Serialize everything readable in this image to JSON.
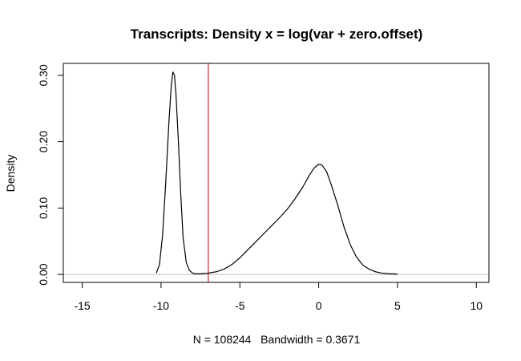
{
  "chart_data": {
    "type": "line",
    "title": "Transcripts: Density x = log(var + zero.offset)",
    "xlabel": "N = 108244   Bandwidth = 0.3671",
    "ylabel": "Density",
    "xlim": [
      -16.2,
      10.8
    ],
    "ylim": [
      -0.012,
      0.318
    ],
    "x_ticks": [
      -15,
      -10,
      -5,
      0,
      5,
      10
    ],
    "x_tick_labels": [
      "-15",
      "-10",
      "-5",
      "0",
      "5",
      "10"
    ],
    "y_ticks": [
      0.0,
      0.1,
      0.2,
      0.3
    ],
    "y_tick_labels": [
      "0.00",
      "0.10",
      "0.20",
      "0.30"
    ],
    "grid": false,
    "baseline": {
      "y": 0,
      "color": "#bebebe"
    },
    "vline": {
      "x": -7.0,
      "color": "#cc0000"
    },
    "series": [
      {
        "line_color": "#000000",
        "points": [
          [
            -10.3,
            0.002
          ],
          [
            -10.1,
            0.015
          ],
          [
            -9.9,
            0.06
          ],
          [
            -9.7,
            0.14
          ],
          [
            -9.5,
            0.23
          ],
          [
            -9.35,
            0.285
          ],
          [
            -9.25,
            0.305
          ],
          [
            -9.15,
            0.3
          ],
          [
            -9.05,
            0.27
          ],
          [
            -8.9,
            0.2
          ],
          [
            -8.75,
            0.12
          ],
          [
            -8.6,
            0.055
          ],
          [
            -8.4,
            0.018
          ],
          [
            -8.2,
            0.006
          ],
          [
            -8.0,
            0.002
          ],
          [
            -7.8,
            0.001
          ],
          [
            -7.5,
            0.001
          ],
          [
            -7.0,
            0.002
          ],
          [
            -6.5,
            0.004
          ],
          [
            -6.0,
            0.008
          ],
          [
            -5.5,
            0.015
          ],
          [
            -5.0,
            0.025
          ],
          [
            -4.5,
            0.037
          ],
          [
            -4.0,
            0.049
          ],
          [
            -3.5,
            0.061
          ],
          [
            -3.0,
            0.073
          ],
          [
            -2.5,
            0.085
          ],
          [
            -2.0,
            0.098
          ],
          [
            -1.5,
            0.114
          ],
          [
            -1.0,
            0.132
          ],
          [
            -0.6,
            0.149
          ],
          [
            -0.3,
            0.16
          ],
          [
            0.0,
            0.166
          ],
          [
            0.2,
            0.165
          ],
          [
            0.5,
            0.155
          ],
          [
            0.8,
            0.135
          ],
          [
            1.2,
            0.105
          ],
          [
            1.6,
            0.072
          ],
          [
            2.0,
            0.045
          ],
          [
            2.4,
            0.026
          ],
          [
            2.8,
            0.014
          ],
          [
            3.2,
            0.008
          ],
          [
            3.6,
            0.004
          ],
          [
            4.0,
            0.002
          ],
          [
            4.5,
            0.001
          ],
          [
            5.0,
            0.0005
          ]
        ]
      }
    ]
  }
}
